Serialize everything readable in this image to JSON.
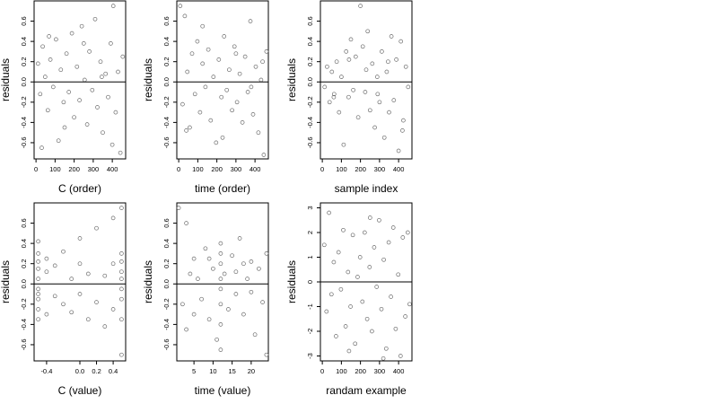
{
  "chart_data": [
    {
      "type": "scatter",
      "xlabel": "C (order)",
      "ylabel": "residuals",
      "xlim": [
        -10,
        470
      ],
      "ylim": [
        -0.76,
        0.8
      ],
      "xticks": [
        0,
        100,
        200,
        300,
        400
      ],
      "yticks": [
        -0.6,
        -0.4,
        -0.2,
        0.0,
        0.2,
        0.4,
        0.6
      ],
      "ytick_labels": [
        "-0.6",
        "-0.4",
        "-0.2",
        "0.0",
        "0.2",
        "0.4",
        "0.6"
      ],
      "reference_line": 0,
      "points": [
        [
          10,
          0.18
        ],
        [
          22,
          -0.12
        ],
        [
          35,
          0.35
        ],
        [
          48,
          0.05
        ],
        [
          62,
          -0.28
        ],
        [
          75,
          0.22
        ],
        [
          90,
          -0.05
        ],
        [
          105,
          0.42
        ],
        [
          118,
          -0.58
        ],
        [
          130,
          0.12
        ],
        [
          145,
          -0.2
        ],
        [
          160,
          0.28
        ],
        [
          172,
          -0.1
        ],
        [
          188,
          0.48
        ],
        [
          200,
          -0.35
        ],
        [
          215,
          0.15
        ],
        [
          228,
          -0.18
        ],
        [
          240,
          0.55
        ],
        [
          255,
          0.02
        ],
        [
          268,
          -0.42
        ],
        [
          280,
          0.3
        ],
        [
          295,
          -0.08
        ],
        [
          310,
          0.62
        ],
        [
          322,
          -0.25
        ],
        [
          338,
          0.2
        ],
        [
          350,
          -0.5
        ],
        [
          365,
          0.08
        ],
        [
          378,
          -0.15
        ],
        [
          392,
          0.38
        ],
        [
          405,
          0.75
        ],
        [
          418,
          -0.3
        ],
        [
          430,
          0.1
        ],
        [
          442,
          -0.7
        ],
        [
          455,
          0.25
        ],
        [
          30,
          -0.65
        ],
        [
          68,
          0.45
        ],
        [
          150,
          -0.45
        ],
        [
          250,
          0.38
        ],
        [
          345,
          0.05
        ],
        [
          400,
          -0.62
        ]
      ]
    },
    {
      "type": "scatter",
      "xlabel": "time (order)",
      "ylabel": "residuals",
      "xlim": [
        -10,
        470
      ],
      "ylim": [
        -0.76,
        0.8
      ],
      "xticks": [
        0,
        100,
        200,
        300,
        400
      ],
      "yticks": [
        -0.6,
        -0.4,
        -0.2,
        0.0,
        0.2,
        0.4,
        0.6
      ],
      "ytick_labels": [
        "-0.6",
        "-0.4",
        "-0.2",
        "0.0",
        "0.2",
        "0.4",
        "0.6"
      ],
      "reference_line": 0,
      "points": [
        [
          8,
          0.75
        ],
        [
          20,
          -0.22
        ],
        [
          32,
          0.65
        ],
        [
          45,
          0.1
        ],
        [
          58,
          -0.45
        ],
        [
          70,
          0.28
        ],
        [
          85,
          -0.12
        ],
        [
          98,
          0.4
        ],
        [
          112,
          -0.3
        ],
        [
          125,
          0.18
        ],
        [
          140,
          -0.05
        ],
        [
          155,
          0.32
        ],
        [
          168,
          -0.38
        ],
        [
          182,
          0.05
        ],
        [
          196,
          -0.6
        ],
        [
          210,
          0.22
        ],
        [
          224,
          -0.15
        ],
        [
          238,
          0.45
        ],
        [
          252,
          -0.08
        ],
        [
          265,
          0.12
        ],
        [
          280,
          -0.28
        ],
        [
          292,
          0.35
        ],
        [
          306,
          -0.2
        ],
        [
          320,
          0.08
        ],
        [
          334,
          -0.4
        ],
        [
          348,
          0.25
        ],
        [
          362,
          -0.1
        ],
        [
          376,
          0.6
        ],
        [
          390,
          -0.32
        ],
        [
          404,
          0.15
        ],
        [
          418,
          -0.5
        ],
        [
          432,
          0.02
        ],
        [
          446,
          -0.72
        ],
        [
          460,
          0.3
        ],
        [
          40,
          -0.48
        ],
        [
          125,
          0.55
        ],
        [
          230,
          -0.55
        ],
        [
          300,
          0.28
        ],
        [
          380,
          -0.05
        ],
        [
          440,
          0.2
        ]
      ]
    },
    {
      "type": "scatter",
      "xlabel": "sample index",
      "ylabel": "residuals",
      "xlim": [
        -10,
        470
      ],
      "ylim": [
        -0.76,
        0.8
      ],
      "xticks": [
        0,
        100,
        200,
        300,
        400
      ],
      "yticks": [
        -0.6,
        -0.4,
        -0.2,
        0.0,
        0.2,
        0.4,
        0.6
      ],
      "ytick_labels": [
        "-0.6",
        "-0.4",
        "-0.2",
        "0.0",
        "0.2",
        "0.4",
        "0.6"
      ],
      "reference_line": 0,
      "points": [
        [
          12,
          -0.05
        ],
        [
          25,
          0.15
        ],
        [
          38,
          -0.2
        ],
        [
          50,
          0.1
        ],
        [
          62,
          -0.12
        ],
        [
          75,
          0.2
        ],
        [
          88,
          -0.3
        ],
        [
          100,
          0.05
        ],
        [
          112,
          -0.62
        ],
        [
          125,
          0.3
        ],
        [
          138,
          -0.15
        ],
        [
          150,
          0.42
        ],
        [
          162,
          -0.08
        ],
        [
          175,
          0.25
        ],
        [
          188,
          -0.35
        ],
        [
          200,
          0.75
        ],
        [
          212,
          0.35
        ],
        [
          225,
          -0.1
        ],
        [
          238,
          0.5
        ],
        [
          250,
          -0.28
        ],
        [
          262,
          0.18
        ],
        [
          275,
          -0.45
        ],
        [
          288,
          0.05
        ],
        [
          300,
          -0.2
        ],
        [
          312,
          0.3
        ],
        [
          325,
          -0.55
        ],
        [
          338,
          0.1
        ],
        [
          350,
          -0.3
        ],
        [
          362,
          0.45
        ],
        [
          375,
          -0.18
        ],
        [
          388,
          0.22
        ],
        [
          400,
          -0.68
        ],
        [
          412,
          0.4
        ],
        [
          425,
          -0.38
        ],
        [
          438,
          0.15
        ],
        [
          450,
          -0.05
        ],
        [
          60,
          -0.15
        ],
        [
          140,
          0.22
        ],
        [
          230,
          0.12
        ],
        [
          290,
          -0.12
        ],
        [
          345,
          0.2
        ],
        [
          420,
          -0.48
        ]
      ]
    },
    {
      "type": "scatter",
      "xlabel": "C (value)",
      "ylabel": "residuals",
      "xlim": [
        -0.55,
        0.55
      ],
      "ylim": [
        -0.76,
        0.8
      ],
      "xticks": [
        -0.4,
        0.0,
        0.2,
        0.4
      ],
      "xtick_labels": [
        "-0.4",
        "0.0",
        "0.2",
        "0.4"
      ],
      "yticks": [
        -0.6,
        -0.4,
        -0.2,
        0.0,
        0.2,
        0.4,
        0.6
      ],
      "ytick_labels": [
        "-0.6",
        "-0.4",
        "-0.2",
        "0.0",
        "0.2",
        "0.4",
        "0.6"
      ],
      "reference_line": 0,
      "points": [
        [
          -0.5,
          0.3
        ],
        [
          -0.5,
          -0.25
        ],
        [
          -0.5,
          0.15
        ],
        [
          -0.5,
          -0.1
        ],
        [
          -0.5,
          0.05
        ],
        [
          -0.5,
          -0.35
        ],
        [
          -0.5,
          0.22
        ],
        [
          -0.5,
          -0.05
        ],
        [
          -0.5,
          0.42
        ],
        [
          -0.5,
          -0.15
        ],
        [
          -0.4,
          0.12
        ],
        [
          -0.4,
          -0.3
        ],
        [
          -0.4,
          0.25
        ],
        [
          -0.3,
          -0.12
        ],
        [
          -0.3,
          0.18
        ],
        [
          -0.2,
          -0.2
        ],
        [
          -0.2,
          0.32
        ],
        [
          -0.1,
          0.05
        ],
        [
          -0.1,
          -0.28
        ],
        [
          0.0,
          0.2
        ],
        [
          0.0,
          -0.1
        ],
        [
          0.0,
          0.45
        ],
        [
          0.1,
          -0.35
        ],
        [
          0.1,
          0.1
        ],
        [
          0.2,
          0.55
        ],
        [
          0.2,
          -0.18
        ],
        [
          0.3,
          0.08
        ],
        [
          0.3,
          -0.42
        ],
        [
          0.4,
          0.65
        ],
        [
          0.4,
          -0.25
        ],
        [
          0.4,
          0.2
        ],
        [
          0.5,
          0.75
        ],
        [
          0.5,
          -0.7
        ],
        [
          0.5,
          0.3
        ],
        [
          0.5,
          -0.15
        ],
        [
          0.5,
          0.05
        ],
        [
          0.5,
          -0.35
        ],
        [
          0.5,
          0.12
        ],
        [
          0.5,
          -0.05
        ],
        [
          0.5,
          0.22
        ]
      ]
    },
    {
      "type": "scatter",
      "xlabel": "time (value)",
      "ylabel": "residuals",
      "xlim": [
        0.5,
        24.5
      ],
      "ylim": [
        -0.76,
        0.8
      ],
      "xticks": [
        5,
        10,
        15,
        20
      ],
      "yticks": [
        -0.6,
        -0.4,
        -0.2,
        0.0,
        0.2,
        0.4,
        0.6
      ],
      "ytick_labels": [
        "-0.6",
        "-0.4",
        "-0.2",
        "0.0",
        "0.2",
        "0.4",
        "0.6"
      ],
      "reference_line": 0,
      "points": [
        [
          1,
          0.75
        ],
        [
          2,
          -0.2
        ],
        [
          3,
          0.6
        ],
        [
          3,
          -0.45
        ],
        [
          4,
          0.1
        ],
        [
          5,
          -0.3
        ],
        [
          5,
          0.25
        ],
        [
          6,
          0.05
        ],
        [
          7,
          -0.15
        ],
        [
          8,
          0.35
        ],
        [
          9,
          -0.35
        ],
        [
          10,
          0.15
        ],
        [
          11,
          -0.55
        ],
        [
          12,
          0.2
        ],
        [
          12,
          -0.2
        ],
        [
          12,
          0.4
        ],
        [
          12,
          -0.4
        ],
        [
          12,
          0.05
        ],
        [
          12,
          -0.05
        ],
        [
          12,
          0.3
        ],
        [
          12,
          -0.65
        ],
        [
          13,
          0.1
        ],
        [
          14,
          -0.25
        ],
        [
          15,
          0.28
        ],
        [
          16,
          -0.1
        ],
        [
          17,
          0.45
        ],
        [
          18,
          -0.3
        ],
        [
          19,
          0.05
        ],
        [
          20,
          0.22
        ],
        [
          21,
          -0.5
        ],
        [
          22,
          0.15
        ],
        [
          23,
          -0.18
        ],
        [
          24,
          0.3
        ],
        [
          24,
          -0.7
        ],
        [
          16,
          0.12
        ],
        [
          18,
          0.2
        ],
        [
          20,
          -0.08
        ],
        [
          9,
          0.25
        ]
      ]
    },
    {
      "type": "scatter",
      "xlabel": "randam example",
      "ylabel": "residuals",
      "xlim": [
        -10,
        470
      ],
      "ylim": [
        -3.2,
        3.2
      ],
      "xticks": [
        0,
        100,
        200,
        300,
        400
      ],
      "yticks": [
        -3,
        -2,
        -1,
        0,
        1,
        2,
        3
      ],
      "ytick_labels": [
        "-3",
        "-2",
        "-1",
        "0",
        "1",
        "2",
        "3"
      ],
      "reference_line": 0,
      "points": [
        [
          10,
          1.5
        ],
        [
          22,
          -1.2
        ],
        [
          35,
          2.8
        ],
        [
          48,
          -0.5
        ],
        [
          60,
          0.8
        ],
        [
          72,
          -2.2
        ],
        [
          85,
          1.2
        ],
        [
          98,
          -0.3
        ],
        [
          110,
          2.1
        ],
        [
          122,
          -1.8
        ],
        [
          135,
          0.4
        ],
        [
          148,
          -1.0
        ],
        [
          160,
          1.9
        ],
        [
          172,
          -2.5
        ],
        [
          185,
          0.2
        ],
        [
          198,
          1.0
        ],
        [
          210,
          -0.8
        ],
        [
          222,
          2.0
        ],
        [
          235,
          -1.5
        ],
        [
          248,
          0.6
        ],
        [
          260,
          -2.0
        ],
        [
          272,
          1.4
        ],
        [
          285,
          -0.2
        ],
        [
          298,
          2.5
        ],
        [
          310,
          -1.1
        ],
        [
          322,
          0.9
        ],
        [
          335,
          -2.7
        ],
        [
          348,
          1.6
        ],
        [
          360,
          -0.6
        ],
        [
          372,
          2.2
        ],
        [
          385,
          -1.9
        ],
        [
          398,
          0.3
        ],
        [
          410,
          -3.0
        ],
        [
          422,
          1.8
        ],
        [
          435,
          -1.4
        ],
        [
          448,
          2.0
        ],
        [
          458,
          -0.9
        ],
        [
          140,
          -2.8
        ],
        [
          320,
          -3.1
        ],
        [
          250,
          2.6
        ]
      ]
    }
  ]
}
